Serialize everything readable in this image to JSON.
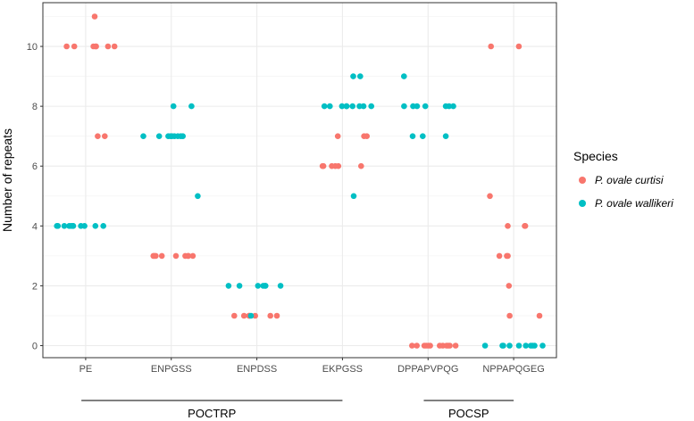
{
  "chart_data": {
    "type": "scatter",
    "title": "",
    "xlabel": "",
    "ylabel": "Number of repeats",
    "categories": [
      "PE",
      "ENPGSS",
      "ENPDSS",
      "EKPGSS",
      "DPPAPVPQG",
      "NPPAPQGEG"
    ],
    "ylim": [
      0,
      11
    ],
    "yticks": [
      0,
      2,
      4,
      6,
      8,
      10
    ],
    "grid": true,
    "legend": {
      "title": "Species",
      "position": "right"
    },
    "groups": [
      {
        "label": "POCTRP",
        "categories": [
          "PE",
          "ENPGSS",
          "ENPDSS",
          "EKPGSS"
        ]
      },
      {
        "label": "POCSP",
        "categories": [
          "DPPAPVPQG",
          "NPPAPQGEG"
        ]
      }
    ],
    "series": [
      {
        "name": "P. ovale curtisi",
        "color": "#F8766D",
        "points": {
          "PE": [
            11,
            10,
            10,
            10,
            10,
            10,
            10,
            10,
            7,
            7
          ],
          "ENPGSS": [
            3,
            3,
            3,
            3,
            3,
            3,
            3,
            3,
            3
          ],
          "ENPDSS": [
            1,
            1,
            1,
            1,
            1,
            1,
            1
          ],
          "EKPGSS": [
            7,
            7,
            7,
            6,
            6,
            6,
            6,
            6,
            6
          ],
          "DPPAPVPQG": [
            0,
            0,
            0,
            0,
            0,
            0,
            0,
            0,
            0,
            0,
            0,
            0
          ],
          "NPPAPQGEG": [
            10,
            10,
            5,
            4,
            4,
            4,
            3,
            3,
            3,
            2,
            1,
            1
          ]
        }
      },
      {
        "name": "P. ovale wallikeri",
        "color": "#00BFC4",
        "points": {
          "PE": [
            4,
            4,
            4,
            4,
            4,
            4,
            4,
            4,
            4,
            4,
            4
          ],
          "ENPGSS": [
            8,
            8,
            7,
            7,
            7,
            7,
            7,
            7,
            7,
            7,
            7,
            5
          ],
          "ENPDSS": [
            2,
            2,
            2,
            2,
            2,
            2,
            2,
            1
          ],
          "EKPGSS": [
            9,
            9,
            8,
            8,
            8,
            8,
            8,
            8,
            8,
            8,
            8,
            5
          ],
          "DPPAPVPQG": [
            9,
            8,
            8,
            8,
            8,
            8,
            8,
            8,
            7,
            7,
            7
          ],
          "NPPAPQGEG": [
            0,
            0,
            0,
            0,
            0,
            0,
            0,
            0,
            0,
            0
          ]
        }
      }
    ]
  }
}
